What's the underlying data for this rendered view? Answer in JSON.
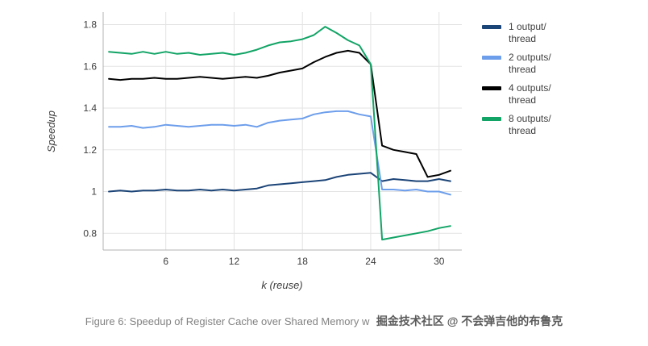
{
  "chart_data": {
    "type": "line",
    "title": "",
    "xlabel": "k (reuse)",
    "ylabel": "Speedup",
    "grid": true,
    "legend_position": "right",
    "xlim": [
      0.5,
      32
    ],
    "ylim": [
      0.72,
      1.86
    ],
    "x_ticks": [
      6,
      12,
      18,
      24,
      30
    ],
    "x_tick_labels": [
      "6",
      "12",
      "18",
      "24",
      "30"
    ],
    "y_ticks": [
      0.8,
      1.0,
      1.2,
      1.4,
      1.6,
      1.8
    ],
    "y_tick_labels": [
      "0.8",
      "1",
      "1.2",
      "1.4",
      "1.6",
      "1.8"
    ],
    "x": [
      1,
      2,
      3,
      4,
      5,
      6,
      7,
      8,
      9,
      10,
      11,
      12,
      13,
      14,
      15,
      16,
      17,
      18,
      19,
      20,
      21,
      22,
      23,
      24,
      25,
      26,
      27,
      28,
      29,
      30,
      31
    ],
    "series": [
      {
        "name": "1 output/ thread",
        "color": "#1b4477",
        "values": [
          1.0,
          1.005,
          1.0,
          1.005,
          1.005,
          1.01,
          1.005,
          1.005,
          1.01,
          1.005,
          1.01,
          1.005,
          1.01,
          1.015,
          1.03,
          1.035,
          1.04,
          1.045,
          1.05,
          1.055,
          1.07,
          1.08,
          1.085,
          1.09,
          1.05,
          1.06,
          1.055,
          1.05,
          1.05,
          1.06,
          1.05
        ]
      },
      {
        "name": "2 outputs/ thread",
        "color": "#6d9eeb",
        "values": [
          1.31,
          1.31,
          1.315,
          1.305,
          1.31,
          1.32,
          1.315,
          1.31,
          1.315,
          1.32,
          1.32,
          1.315,
          1.32,
          1.31,
          1.33,
          1.34,
          1.345,
          1.35,
          1.37,
          1.38,
          1.385,
          1.385,
          1.37,
          1.36,
          1.01,
          1.01,
          1.005,
          1.01,
          1.0,
          1.0,
          0.985
        ]
      },
      {
        "name": "4 outputs/ thread",
        "color": "#000000",
        "values": [
          1.54,
          1.535,
          1.54,
          1.54,
          1.545,
          1.54,
          1.54,
          1.545,
          1.55,
          1.545,
          1.54,
          1.545,
          1.55,
          1.545,
          1.555,
          1.57,
          1.58,
          1.59,
          1.62,
          1.645,
          1.665,
          1.675,
          1.665,
          1.61,
          1.22,
          1.2,
          1.19,
          1.18,
          1.07,
          1.08,
          1.1
        ]
      },
      {
        "name": "8 outputs/ thread",
        "color": "#12a466",
        "values": [
          1.67,
          1.665,
          1.66,
          1.67,
          1.66,
          1.67,
          1.66,
          1.665,
          1.655,
          1.66,
          1.665,
          1.655,
          1.665,
          1.68,
          1.7,
          1.715,
          1.72,
          1.73,
          1.75,
          1.79,
          1.76,
          1.725,
          1.7,
          1.61,
          0.77,
          0.78,
          0.79,
          0.8,
          0.81,
          0.825,
          0.835
        ]
      }
    ],
    "style": {
      "grid_color": "#e3e3e3",
      "axis_color": "#b3b3b3",
      "tick_label_color": "#3c3c3c",
      "line_width": 2
    }
  },
  "figure_caption": {
    "text": "Figure 6: Speedup of Register Cache over Shared Memory w",
    "watermark": "掘金技术社区 @ 不会弹吉他的布鲁克"
  }
}
